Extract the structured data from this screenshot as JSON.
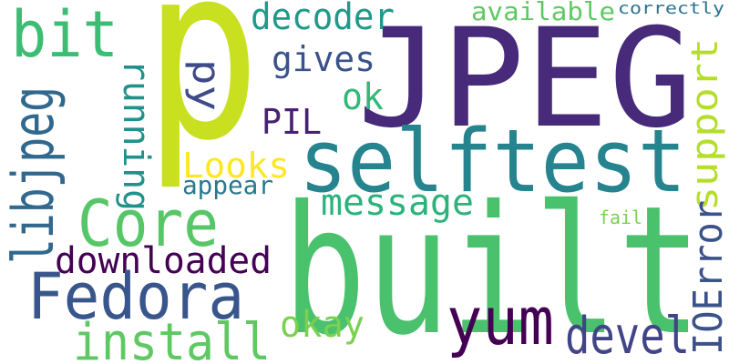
{
  "words": [
    {
      "text": "p",
      "color": "#c8e020"
    },
    {
      "text": "JPEG",
      "color": "#472a7a"
    },
    {
      "text": "built",
      "color": "#4ac16d"
    },
    {
      "text": "selftest",
      "color": "#25848e"
    },
    {
      "text": "bit",
      "color": "#3dbc74"
    },
    {
      "text": "decoder",
      "color": "#1f9a8a"
    },
    {
      "text": "available",
      "color": "#5ec962"
    },
    {
      "text": "correctly",
      "color": "#2c728e"
    },
    {
      "text": "gives",
      "color": "#3b528b"
    },
    {
      "text": "py",
      "color": "#3e4a89"
    },
    {
      "text": "ok",
      "color": "#35b779"
    },
    {
      "text": "PIL",
      "color": "#482173"
    },
    {
      "text": "libjpeg",
      "color": "#31688e"
    },
    {
      "text": "running",
      "color": "#21918c"
    },
    {
      "text": "Looks",
      "color": "#fde725"
    },
    {
      "text": "appear",
      "color": "#2a788e"
    },
    {
      "text": "support",
      "color": "#b5de2b"
    },
    {
      "text": "Core",
      "color": "#56c667"
    },
    {
      "text": "message",
      "color": "#2db27d"
    },
    {
      "text": "fail",
      "color": "#7ad151"
    },
    {
      "text": "downloaded",
      "color": "#440154"
    },
    {
      "text": "Fedora",
      "color": "#39568c"
    },
    {
      "text": "IOError",
      "color": "#3b528b"
    },
    {
      "text": "yum",
      "color": "#440154"
    },
    {
      "text": "devel",
      "color": "#414487"
    },
    {
      "text": "okay",
      "color": "#7ad151"
    },
    {
      "text": "install",
      "color": "#5ec962"
    }
  ]
}
